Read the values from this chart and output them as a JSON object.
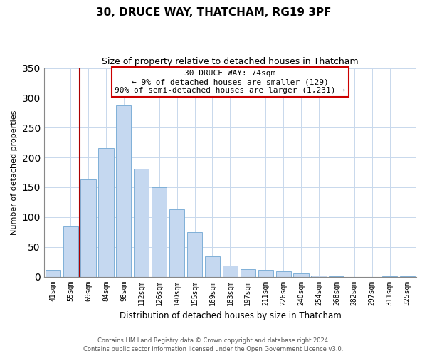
{
  "title1": "30, DRUCE WAY, THATCHAM, RG19 3PF",
  "title2": "Size of property relative to detached houses in Thatcham",
  "xlabel": "Distribution of detached houses by size in Thatcham",
  "ylabel": "Number of detached properties",
  "categories": [
    "41sqm",
    "55sqm",
    "69sqm",
    "84sqm",
    "98sqm",
    "112sqm",
    "126sqm",
    "140sqm",
    "155sqm",
    "169sqm",
    "183sqm",
    "197sqm",
    "211sqm",
    "226sqm",
    "240sqm",
    "254sqm",
    "268sqm",
    "282sqm",
    "297sqm",
    "311sqm",
    "325sqm"
  ],
  "values": [
    11,
    84,
    163,
    216,
    287,
    181,
    150,
    113,
    75,
    34,
    18,
    13,
    11,
    9,
    5,
    2,
    1,
    0,
    0,
    1,
    1
  ],
  "bar_color": "#c5d8f0",
  "bar_edge_color": "#7fb0d8",
  "vline_x": 1.5,
  "vline_color": "#aa0000",
  "annotation_title": "30 DRUCE WAY: 74sqm",
  "annotation_line1": "← 9% of detached houses are smaller (129)",
  "annotation_line2": "90% of semi-detached houses are larger (1,231) →",
  "ylim": [
    0,
    350
  ],
  "yticks": [
    0,
    50,
    100,
    150,
    200,
    250,
    300,
    350
  ],
  "footer1": "Contains HM Land Registry data © Crown copyright and database right 2024.",
  "footer2": "Contains public sector information licensed under the Open Government Licence v3.0."
}
